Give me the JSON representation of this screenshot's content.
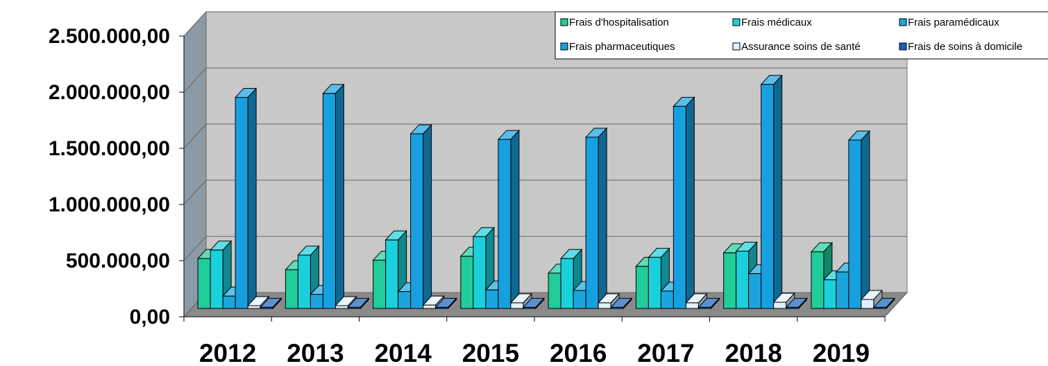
{
  "chart_data": {
    "type": "bar3d",
    "categories": [
      "2012",
      "2013",
      "2014",
      "2015",
      "2016",
      "2017",
      "2018",
      "2019"
    ],
    "series": [
      {
        "name": "Frais d'hospitalisation",
        "color": "#1fcc9a",
        "values": [
          445000,
          345000,
          430000,
          465000,
          315000,
          375000,
          495000,
          505000
        ]
      },
      {
        "name": "Frais médicaux",
        "color": "#1ad0dc",
        "values": [
          520000,
          475000,
          610000,
          640000,
          445000,
          455000,
          510000,
          255000
        ]
      },
      {
        "name": "Frais paramédicaux",
        "color": "#1aa6dc",
        "values": [
          110000,
          125000,
          150000,
          165000,
          160000,
          155000,
          310000,
          325000
        ]
      },
      {
        "name": "Frais pharmaceutiques",
        "color": "#17a0e0",
        "values": [
          1880000,
          1915000,
          1555000,
          1505000,
          1525000,
          1800000,
          1995000,
          1500000
        ]
      },
      {
        "name": "Assurance soins de santé",
        "color": "#dff0ff",
        "values": [
          25000,
          25000,
          30000,
          50000,
          50000,
          50000,
          55000,
          80000
        ]
      },
      {
        "name": "Frais de soins à domicile",
        "color": "#1660b8",
        "values": [
          10000,
          10000,
          10000,
          10000,
          10000,
          10000,
          10000,
          10000
        ]
      }
    ],
    "ylim": [
      0,
      2500000
    ],
    "yticks": [
      {
        "value": 0,
        "label": "0,00"
      },
      {
        "value": 500000,
        "label": "500.000,00"
      },
      {
        "value": 1000000,
        "label": "1.000.000,00"
      },
      {
        "value": 1500000,
        "label": "1.500.000,00"
      },
      {
        "value": 2000000,
        "label": "2.000.000,00"
      },
      {
        "value": 2500000,
        "label": "2.500.000,00"
      }
    ],
    "grid": true,
    "legend": "top-right"
  }
}
